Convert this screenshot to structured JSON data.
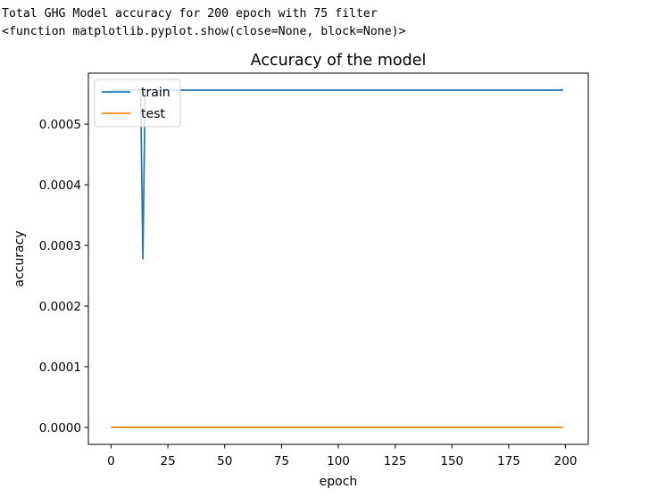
{
  "console": {
    "line1": "Total GHG Model accuracy for 200 epoch with 75 filter",
    "line2": "<function matplotlib.pyplot.show(close=None, block=None)>"
  },
  "chart_data": {
    "type": "line",
    "title": "Accuracy of the model",
    "xlabel": "epoch",
    "ylabel": "accuracy",
    "xlim": [
      -10,
      210
    ],
    "ylim": [
      -2.8e-05,
      0.000584
    ],
    "xticks": [
      0,
      25,
      50,
      75,
      100,
      125,
      150,
      175,
      200
    ],
    "xtick_labels": [
      "0",
      "25",
      "50",
      "75",
      "100",
      "125",
      "150",
      "175",
      "200"
    ],
    "yticks": [
      0,
      0.0001,
      0.0002,
      0.0003,
      0.0004,
      0.0005
    ],
    "ytick_labels": [
      "0.0000",
      "0.0001",
      "0.0002",
      "0.0003",
      "0.0004",
      "0.0005"
    ],
    "grid": false,
    "legend_position": "upper left",
    "series": [
      {
        "name": "train",
        "color": "#1f77b4",
        "x": [
          0,
          13,
          14,
          15,
          199
        ],
        "y": [
          0.000556,
          0.000556,
          0.000278,
          0.000556,
          0.000556
        ]
      },
      {
        "name": "test",
        "color": "#ff7f0e",
        "x": [
          0,
          199
        ],
        "y": [
          0,
          0
        ]
      }
    ]
  }
}
